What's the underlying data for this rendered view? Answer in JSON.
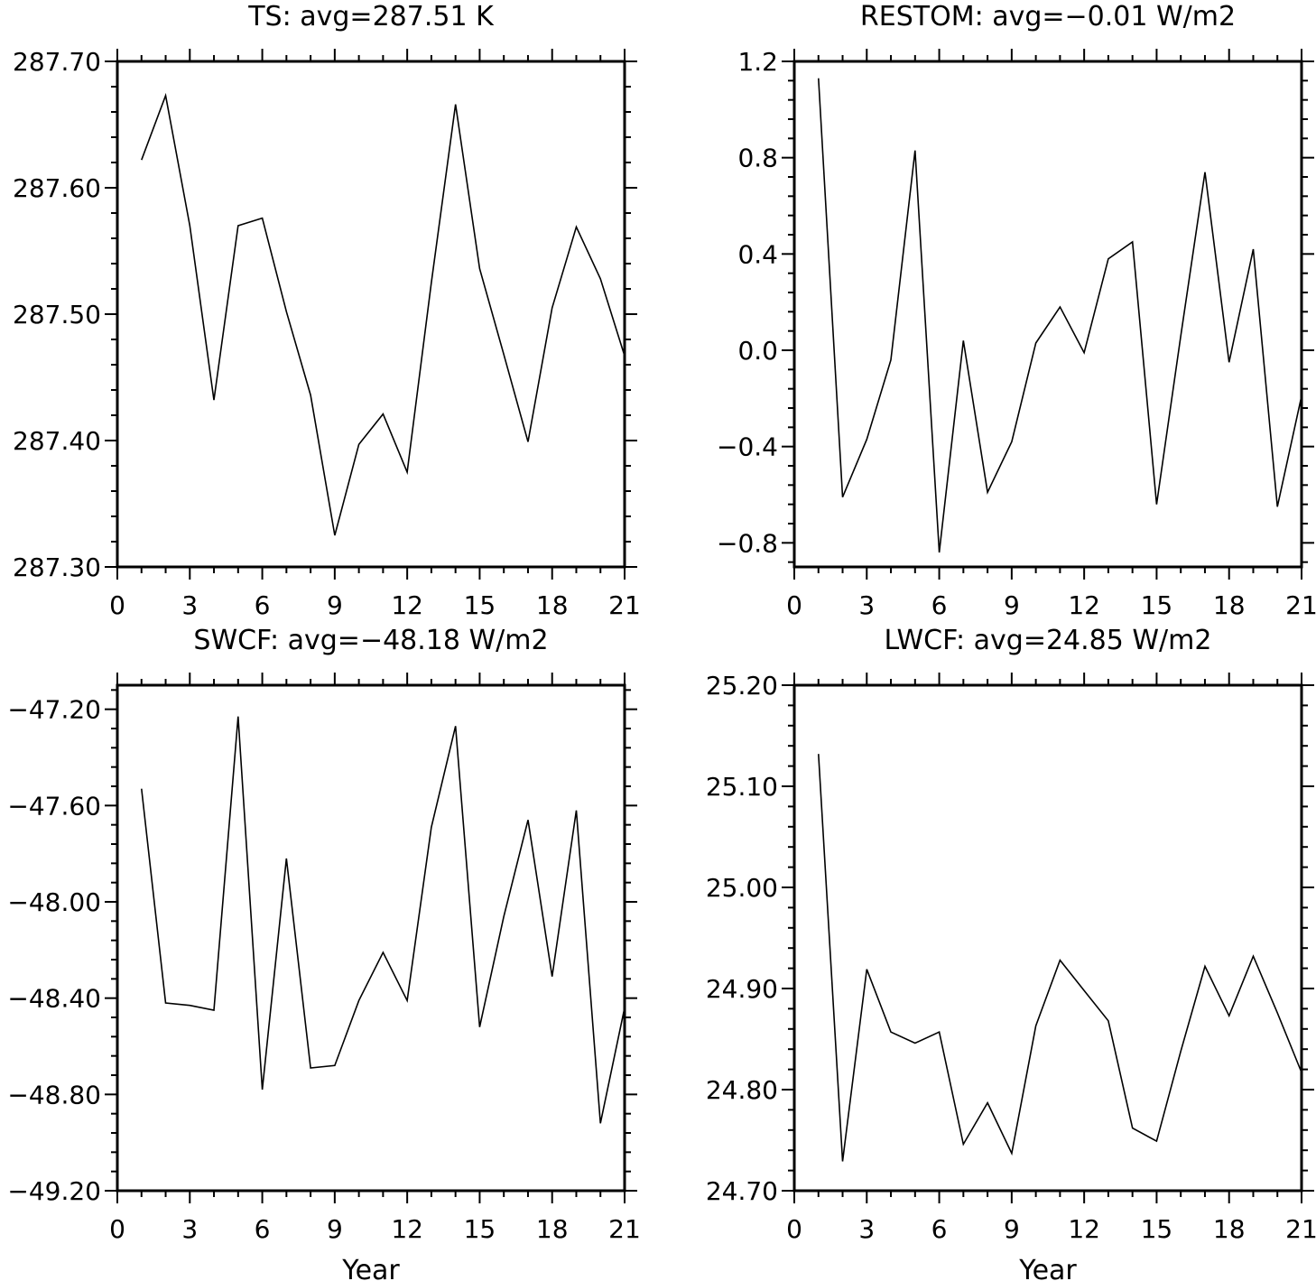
{
  "chart_data": [
    {
      "type": "line",
      "title": "TS: avg=287.51 K",
      "xlabel": "",
      "ylabel": "",
      "xlim": [
        0,
        21
      ],
      "ylim": [
        287.3,
        287.7
      ],
      "x_ticks": [
        0,
        3,
        6,
        9,
        12,
        15,
        18,
        21
      ],
      "x_tick_labels": [
        "0",
        "3",
        "6",
        "9",
        "12",
        "15",
        "18",
        "21"
      ],
      "y_ticks": [
        287.3,
        287.4,
        287.5,
        287.6,
        287.7
      ],
      "y_tick_labels": [
        "287.30",
        "287.40",
        "287.50",
        "287.60",
        "287.70"
      ],
      "grid": false,
      "series": [
        {
          "x": [
            1,
            2,
            3,
            4,
            5,
            6,
            7,
            8,
            9,
            10,
            11,
            12,
            13,
            14,
            15,
            16,
            17,
            18,
            19,
            20,
            21
          ],
          "values": [
            287.622,
            287.673,
            287.57,
            287.432,
            287.57,
            287.576,
            287.502,
            287.436,
            287.325,
            287.397,
            287.421,
            287.375,
            287.525,
            287.666,
            287.536,
            287.468,
            287.399,
            287.505,
            287.569,
            287.528,
            287.467
          ]
        }
      ]
    },
    {
      "type": "line",
      "title": "RESTOM: avg=−0.01 W/m2",
      "xlabel": "",
      "ylabel": "",
      "xlim": [
        0,
        21
      ],
      "ylim": [
        -0.9,
        1.2
      ],
      "x_ticks": [
        0,
        3,
        6,
        9,
        12,
        15,
        18,
        21
      ],
      "x_tick_labels": [
        "0",
        "3",
        "6",
        "9",
        "12",
        "15",
        "18",
        "21"
      ],
      "y_ticks": [
        -0.8,
        -0.4,
        0.0,
        0.4,
        0.8,
        1.2
      ],
      "y_tick_labels": [
        "−0.8",
        "−0.4",
        "0.0",
        "0.4",
        "0.8",
        "1.2"
      ],
      "grid": false,
      "series": [
        {
          "x": [
            1,
            2,
            3,
            4,
            5,
            6,
            7,
            8,
            9,
            10,
            11,
            12,
            13,
            14,
            15,
            16,
            17,
            18,
            19,
            20,
            21
          ],
          "values": [
            1.13,
            -0.61,
            -0.37,
            -0.04,
            0.83,
            -0.84,
            0.04,
            -0.59,
            -0.38,
            0.03,
            0.18,
            -0.01,
            0.38,
            0.45,
            -0.64,
            0.06,
            0.74,
            -0.05,
            0.42,
            -0.65,
            -0.19
          ]
        }
      ]
    },
    {
      "type": "line",
      "title": "SWCF: avg=−48.18 W/m2",
      "xlabel": "Year",
      "ylabel": "",
      "xlim": [
        0,
        21
      ],
      "ylim": [
        -49.2,
        -47.1
      ],
      "x_ticks": [
        0,
        3,
        6,
        9,
        12,
        15,
        18,
        21
      ],
      "x_tick_labels": [
        "0",
        "3",
        "6",
        "9",
        "12",
        "15",
        "18",
        "21"
      ],
      "y_ticks": [
        -49.2,
        -48.8,
        -48.4,
        -48.0,
        -47.6,
        -47.2
      ],
      "y_tick_labels": [
        "−49.20",
        "−48.80",
        "−48.40",
        "−48.00",
        "−47.60",
        "−47.20"
      ],
      "grid": false,
      "series": [
        {
          "x": [
            1,
            2,
            3,
            4,
            5,
            6,
            7,
            8,
            9,
            10,
            11,
            12,
            13,
            14,
            15,
            16,
            17,
            18,
            19,
            20,
            21
          ],
          "values": [
            -47.53,
            -48.42,
            -48.43,
            -48.45,
            -47.23,
            -48.78,
            -47.82,
            -48.69,
            -48.68,
            -48.41,
            -48.21,
            -48.41,
            -47.69,
            -47.27,
            -48.52,
            -48.06,
            -47.66,
            -48.31,
            -47.62,
            -48.92,
            -48.44
          ]
        }
      ]
    },
    {
      "type": "line",
      "title": "LWCF: avg=24.85 W/m2",
      "xlabel": "Year",
      "ylabel": "",
      "xlim": [
        0,
        21
      ],
      "ylim": [
        24.7,
        25.2
      ],
      "x_ticks": [
        0,
        3,
        6,
        9,
        12,
        15,
        18,
        21
      ],
      "x_tick_labels": [
        "0",
        "3",
        "6",
        "9",
        "12",
        "15",
        "18",
        "21"
      ],
      "y_ticks": [
        24.7,
        24.8,
        24.9,
        25.0,
        25.1,
        25.2
      ],
      "y_tick_labels": [
        "24.70",
        "24.80",
        "24.90",
        "25.00",
        "25.10",
        "25.20"
      ],
      "grid": false,
      "series": [
        {
          "x": [
            1,
            2,
            3,
            4,
            5,
            6,
            7,
            8,
            9,
            10,
            11,
            12,
            13,
            14,
            15,
            16,
            17,
            18,
            19,
            20,
            21
          ],
          "values": [
            25.132,
            24.729,
            24.919,
            24.857,
            24.846,
            24.857,
            24.746,
            24.787,
            24.737,
            24.863,
            24.928,
            24.898,
            24.868,
            24.762,
            24.749,
            24.838,
            24.922,
            24.873,
            24.932,
            24.876,
            24.817
          ]
        }
      ]
    }
  ],
  "colors": {
    "line": "#000000",
    "axes": "#000000",
    "background": "#ffffff"
  }
}
